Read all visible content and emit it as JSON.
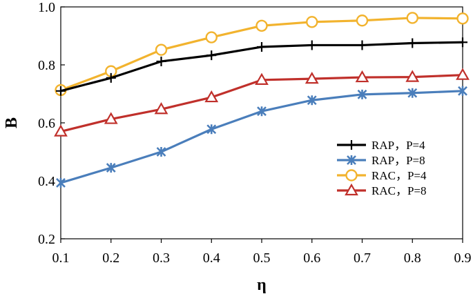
{
  "chart_data": {
    "type": "line",
    "title": "",
    "xlabel": "η",
    "ylabel": "B",
    "x": [
      0.1,
      0.2,
      0.3,
      0.4,
      0.5,
      0.6,
      0.7,
      0.8,
      0.9
    ],
    "x_tick_labels": [
      "0.1",
      "0.2",
      "0.3",
      "0.4",
      "0.5",
      "0.6",
      "0.7",
      "0.8",
      "0.9"
    ],
    "y_ticks": [
      0.2,
      0.4,
      0.6,
      0.8,
      1.0
    ],
    "y_tick_labels": [
      "0.2",
      "0.4",
      "0.6",
      "0.8",
      "1.0"
    ],
    "xlim": [
      0.1,
      0.9
    ],
    "ylim": [
      0.2,
      1.0
    ],
    "grid": false,
    "legend_position": "bottom-right",
    "series": [
      {
        "name": "RAP，P=4",
        "color": "#000000",
        "marker": "plus",
        "values": [
          0.71,
          0.755,
          0.812,
          0.833,
          0.862,
          0.868,
          0.868,
          0.875,
          0.878
        ]
      },
      {
        "name": "RAP，P=8",
        "color": "#4a7ebb",
        "marker": "star",
        "values": [
          0.393,
          0.445,
          0.5,
          0.578,
          0.64,
          0.678,
          0.698,
          0.703,
          0.71
        ]
      },
      {
        "name": "RAC，P=4",
        "color": "#f2b32e",
        "marker": "circle",
        "values": [
          0.713,
          0.778,
          0.852,
          0.895,
          0.935,
          0.948,
          0.953,
          0.962,
          0.96
        ]
      },
      {
        "name": "RAC，P=8",
        "color": "#c0302b",
        "marker": "triangle",
        "values": [
          0.57,
          0.613,
          0.647,
          0.688,
          0.748,
          0.752,
          0.757,
          0.758,
          0.765
        ]
      }
    ]
  }
}
